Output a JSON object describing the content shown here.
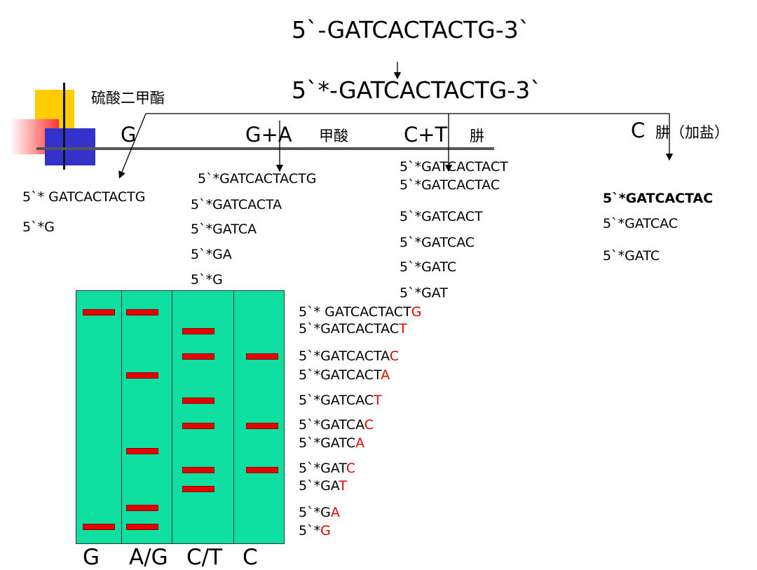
{
  "colors": {
    "gel": "#0fdfa0",
    "band": "#e60000",
    "accent_red": "#e60000",
    "deco_yellow": "#ffcc00",
    "deco_blue": "#3333cc",
    "deco_red": "#ff3333"
  },
  "top_sequence": "5`-GATCACTACTG-3`",
  "labeled_sequence": "5`*-GATCACTACTG-3`",
  "reagent_dms": "硫酸二甲酯",
  "lanes": {
    "g": {
      "label": "G"
    },
    "ga": {
      "label": "G+A",
      "reagent": "甲酸"
    },
    "ct": {
      "label": "C+T",
      "reagent": "肼"
    },
    "c": {
      "label": "C",
      "reagent": "肼（加盐）"
    }
  },
  "fragments": {
    "g": [
      "5`* GATCACTACTG",
      "5`*G"
    ],
    "ga": [
      "5`*GATCACTACTG",
      "5`*GATCACTA",
      "5`*GATCA",
      "5`*GA",
      "5`*G"
    ],
    "ct": [
      "5`*GATCACTACT",
      "5`*GATCACTAC",
      "5`*GATCACT",
      "5`*GATCAC",
      "5`*GATC",
      "5`*GAT"
    ],
    "c": [
      "5`*GATCACTAC",
      "5`*GATCAC",
      "5`*GATC"
    ]
  },
  "ladder": [
    {
      "prefix": "5`* GATCACTACT",
      "base": "G"
    },
    {
      "prefix": "5`*GATCACTAC",
      "base": "T"
    },
    {
      "prefix": "5`*GATCACTA",
      "base": "C"
    },
    {
      "prefix": "5`*GATCACT",
      "base": "A"
    },
    {
      "prefix": "5`*GATCAC",
      "base": "T"
    },
    {
      "prefix": "5`*GATCA",
      "base": "C"
    },
    {
      "prefix": "5`*GATC",
      "base": "A"
    },
    {
      "prefix": "5`*GAT",
      "base": "C"
    },
    {
      "prefix": "5`*GA",
      "base": "T"
    },
    {
      "prefix": "5`*G",
      "base": "A"
    },
    {
      "prefix": "5`*",
      "base": "G"
    }
  ],
  "gel_lanes": [
    "G",
    "A/G",
    "C/T",
    "C"
  ]
}
